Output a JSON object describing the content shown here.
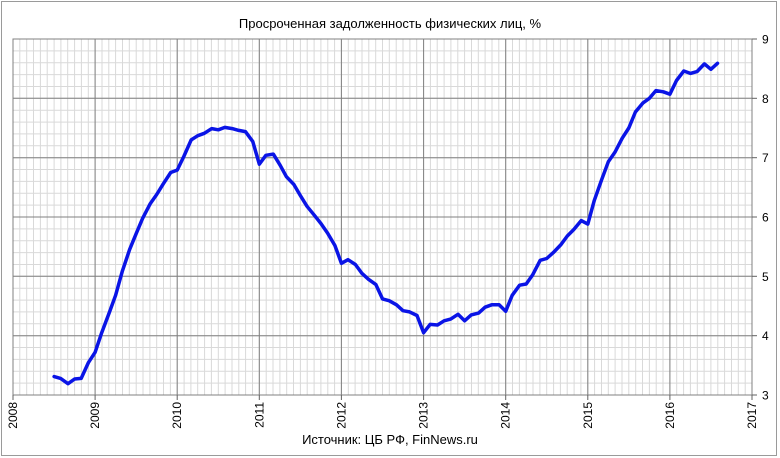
{
  "chart_data": {
    "type": "line",
    "title": "Просроченная задолженность физических лиц, %",
    "source": "Источник: ЦБ РФ, FinNews.ru",
    "xlabel": "",
    "ylabel": "",
    "x_ticks": [
      "2008",
      "2009",
      "2010",
      "2011",
      "2012",
      "2013",
      "2014",
      "2015",
      "2016",
      "2017"
    ],
    "y_ticks": [
      "3",
      "4",
      "5",
      "6",
      "7",
      "8",
      "9"
    ],
    "xlim": [
      2008,
      2017
    ],
    "ylim": [
      3,
      9
    ],
    "y_axis_side": "right",
    "grid": true,
    "line_color": "#0a14e6",
    "series": [
      {
        "x": [
          2008.5,
          2008.58,
          2008.67,
          2008.75,
          2008.83,
          2008.92,
          2009.0,
          2009.08,
          2009.17,
          2009.25,
          2009.33,
          2009.42,
          2009.5,
          2009.58,
          2009.67,
          2009.75,
          2009.83,
          2009.92,
          2010.0,
          2010.08,
          2010.17,
          2010.25,
          2010.33,
          2010.42,
          2010.5,
          2010.58,
          2010.67,
          2010.75,
          2010.83,
          2010.92,
          2011.0,
          2011.08,
          2011.17,
          2011.25,
          2011.33,
          2011.42,
          2011.5,
          2011.58,
          2011.67,
          2011.75,
          2011.83,
          2011.92,
          2012.0,
          2012.08,
          2012.17,
          2012.25,
          2012.33,
          2012.42,
          2012.5,
          2012.58,
          2012.67,
          2012.75,
          2012.83,
          2012.92,
          2013.0,
          2013.08,
          2013.17,
          2013.25,
          2013.33,
          2013.42,
          2013.5,
          2013.58,
          2013.67,
          2013.75,
          2013.83,
          2013.92,
          2014.0,
          2014.08,
          2014.17,
          2014.25,
          2014.33,
          2014.42,
          2014.5,
          2014.58,
          2014.67,
          2014.75,
          2014.83,
          2014.92,
          2015.0,
          2015.08,
          2015.17,
          2015.25,
          2015.33,
          2015.42,
          2015.5,
          2015.58,
          2015.67,
          2015.75,
          2015.83,
          2015.92,
          2016.0,
          2016.08,
          2016.17,
          2016.25,
          2016.33,
          2016.42,
          2016.5,
          2016.58
        ],
        "y": [
          3.31,
          3.28,
          3.19,
          3.27,
          3.28,
          3.55,
          3.72,
          4.05,
          4.38,
          4.68,
          5.08,
          5.45,
          5.72,
          5.98,
          6.22,
          6.38,
          6.56,
          6.75,
          6.79,
          7.02,
          7.3,
          7.37,
          7.41,
          7.49,
          7.47,
          7.51,
          7.49,
          7.46,
          7.44,
          7.27,
          6.89,
          7.04,
          7.06,
          6.88,
          6.68,
          6.55,
          6.36,
          6.18,
          6.03,
          5.89,
          5.73,
          5.52,
          5.22,
          5.28,
          5.2,
          5.05,
          4.95,
          4.86,
          4.62,
          4.59,
          4.52,
          4.42,
          4.4,
          4.34,
          4.05,
          4.19,
          4.18,
          4.25,
          4.28,
          4.36,
          4.25,
          4.35,
          4.38,
          4.48,
          4.52,
          4.52,
          4.41,
          4.68,
          4.85,
          4.87,
          5.03,
          5.27,
          5.3,
          5.4,
          5.53,
          5.68,
          5.79,
          5.94,
          5.88,
          6.28,
          6.63,
          6.93,
          7.09,
          7.33,
          7.5,
          7.77,
          7.92,
          8.0,
          8.13,
          8.11,
          8.07,
          8.3,
          8.46,
          8.42,
          8.45,
          8.58,
          8.49,
          8.59
        ]
      }
    ]
  }
}
